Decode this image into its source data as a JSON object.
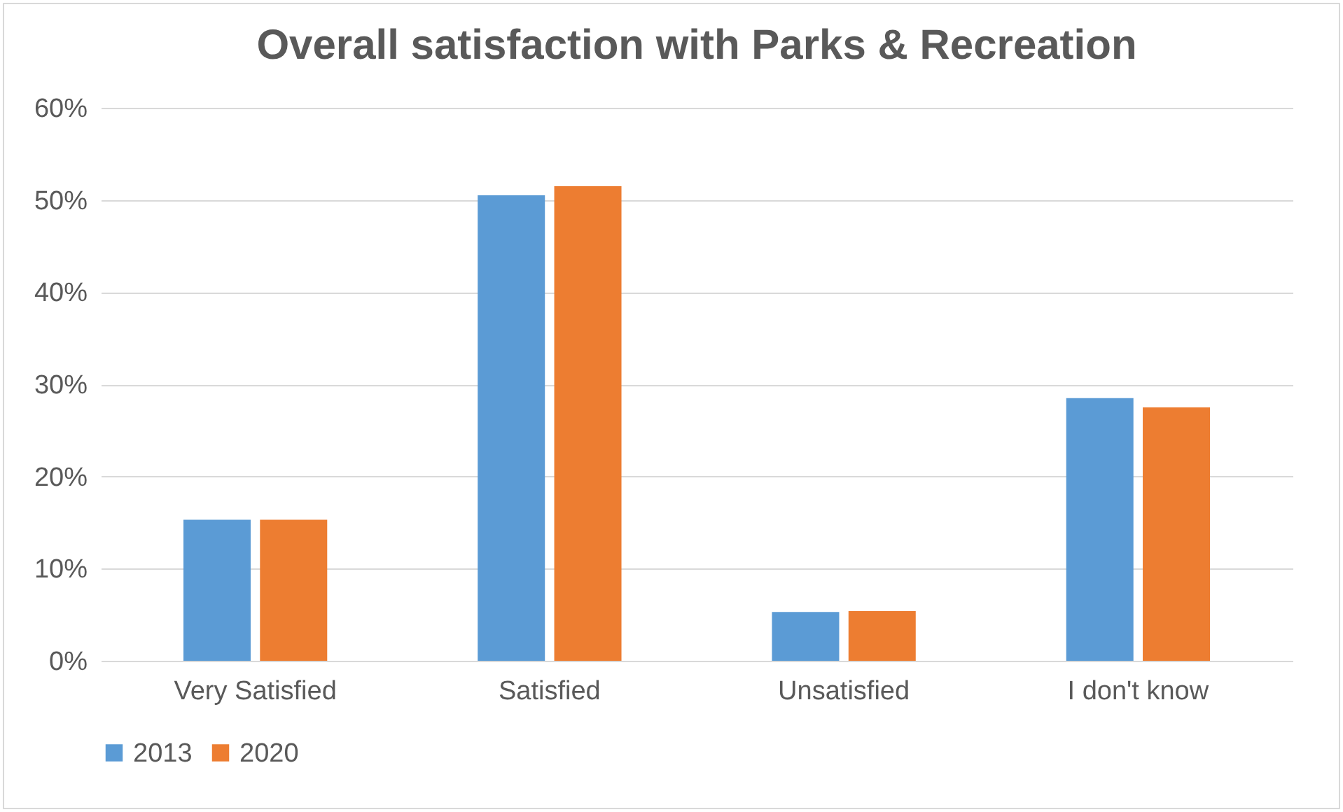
{
  "chart_data": {
    "type": "bar",
    "title": "Overall satisfaction with Parks & Recreation",
    "categories": [
      "Very Satisfied",
      "Satisfied",
      "Unsatisfied",
      "I don't know"
    ],
    "series": [
      {
        "name": "2013",
        "color": "#5b9bd5",
        "values": [
          15.3,
          50.5,
          5.3,
          28.5
        ]
      },
      {
        "name": "2020",
        "color": "#ed7d31",
        "values": [
          15.3,
          51.5,
          5.4,
          27.5
        ]
      }
    ],
    "ylim": [
      0,
      60
    ],
    "yticks": [
      {
        "value": 0,
        "label": "0%"
      },
      {
        "value": 10,
        "label": "10%"
      },
      {
        "value": 20,
        "label": "20%"
      },
      {
        "value": 30,
        "label": "30%"
      },
      {
        "value": 40,
        "label": "40%"
      },
      {
        "value": 50,
        "label": "50%"
      },
      {
        "value": 60,
        "label": "60%"
      }
    ],
    "grid": "y",
    "legend": "bottom"
  }
}
